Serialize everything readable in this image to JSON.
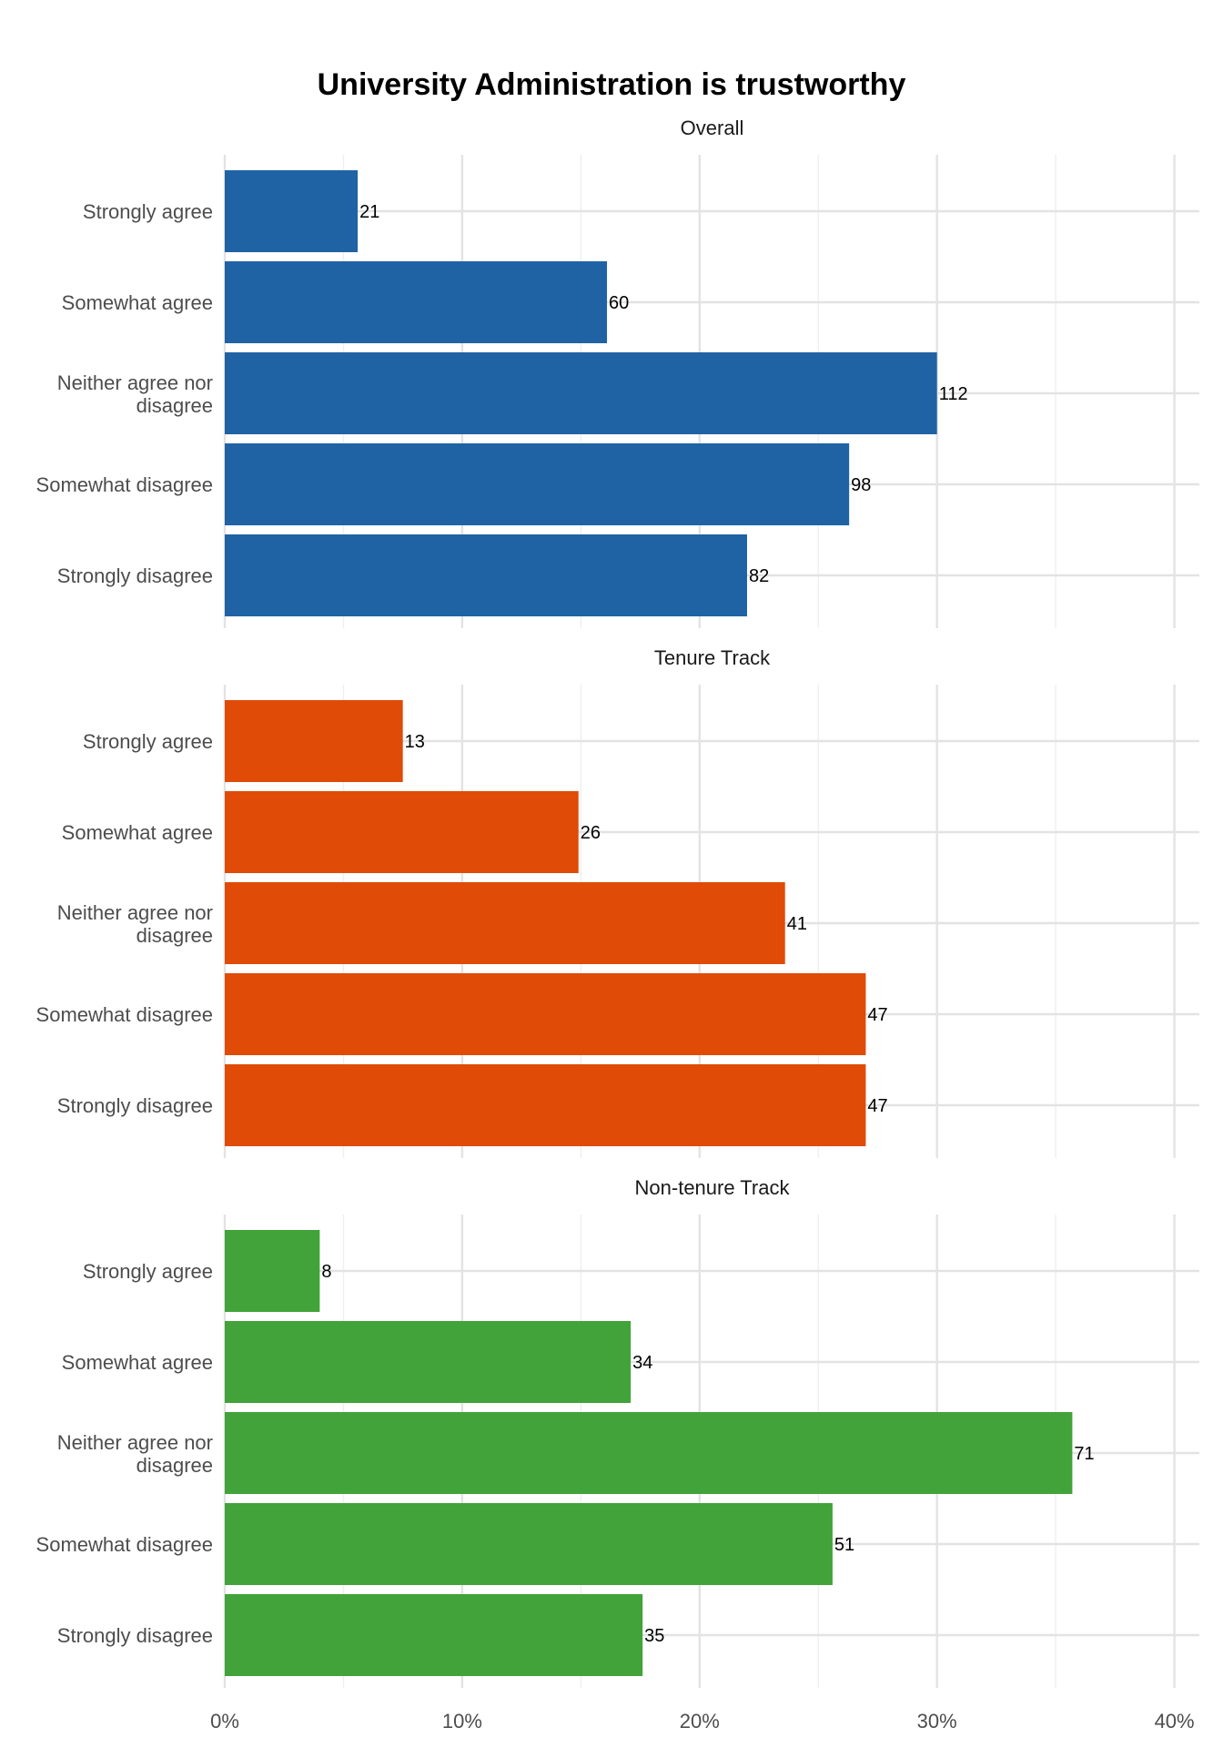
{
  "chart_data": {
    "type": "bar",
    "orientation": "horizontal",
    "title": "University Administration is trustworthy",
    "xlabel": "",
    "ylabel": "",
    "xlim": [
      0,
      0.41
    ],
    "x_ticks": [
      "0%",
      "10%",
      "20%",
      "30%",
      "40%"
    ],
    "x_tick_values": [
      0,
      0.1,
      0.2,
      0.3,
      0.4
    ],
    "grid": true,
    "categories": [
      "Strongly agree",
      "Somewhat agree",
      "Neither agree nor disagree",
      "Somewhat disagree",
      "Strongly disagree"
    ],
    "category_lines": [
      [
        "Strongly agree"
      ],
      [
        "Somewhat agree"
      ],
      [
        "Neither agree nor",
        "disagree"
      ],
      [
        "Somewhat disagree"
      ],
      [
        "Strongly disagree"
      ]
    ],
    "panels": [
      {
        "name": "Overall",
        "color": "#1f63a5",
        "counts": [
          "21",
          "60",
          "112",
          "98",
          "82"
        ],
        "values": [
          0.056,
          0.161,
          0.3,
          0.263,
          0.22
        ]
      },
      {
        "name": "Tenure Track",
        "color": "#e04b08",
        "counts": [
          "13",
          "26",
          "41",
          "47",
          "47"
        ],
        "values": [
          0.075,
          0.149,
          0.236,
          0.27,
          0.27
        ]
      },
      {
        "name": "Non-tenure Track",
        "color": "#41a33a",
        "counts": [
          "8",
          "34",
          "71",
          "51",
          "35"
        ],
        "values": [
          0.04,
          0.171,
          0.357,
          0.256,
          0.176
        ]
      }
    ]
  }
}
